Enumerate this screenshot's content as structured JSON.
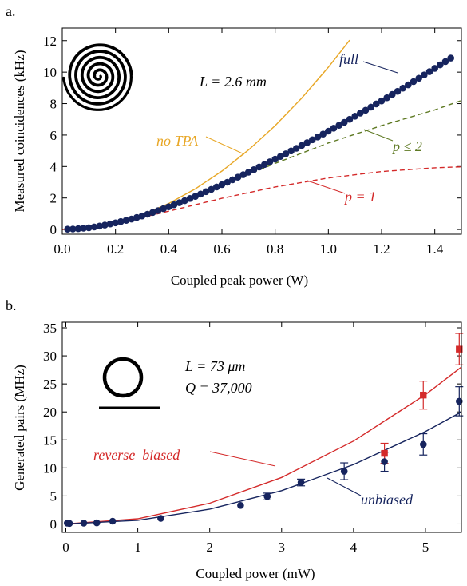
{
  "panels": [
    {
      "label": "a.",
      "xlabel": "Coupled peak power (W)",
      "ylabel": "Measured coincidences (kHz)",
      "inset_text": "L = 2.6 mm"
    },
    {
      "label": "b.",
      "xlabel": "Coupled power (mW)",
      "ylabel": "Generated pairs (MHz)",
      "inset_text_1": "L = 73 μm",
      "inset_text_2": "Q = 37,000"
    }
  ],
  "colors": {
    "navy": "#16245e",
    "red": "#d42a2a",
    "gold": "#e8a726",
    "olive": "#5f7a24",
    "axis": "#000000"
  },
  "chart_data": [
    {
      "type": "line",
      "xlim": [
        0,
        1.5
      ],
      "ylim": [
        -0.3,
        12.8
      ],
      "xticks": [
        "0.0",
        "0.2",
        "0.4",
        "0.6",
        "0.8",
        "1.0",
        "1.2",
        "1.4"
      ],
      "yticks": [
        "0",
        "2",
        "4",
        "6",
        "8",
        "10",
        "12"
      ],
      "grid": false,
      "series": [
        {
          "name": "full",
          "style": "markers+line",
          "x": [
            0.02,
            0.04,
            0.06,
            0.08,
            0.1,
            0.12,
            0.14,
            0.16,
            0.18,
            0.2,
            0.22,
            0.24,
            0.26,
            0.28,
            0.3,
            0.32,
            0.34,
            0.36,
            0.38,
            0.4,
            0.42,
            0.44,
            0.46,
            0.48,
            0.5,
            0.52,
            0.54,
            0.56,
            0.58,
            0.6,
            0.62,
            0.64,
            0.66,
            0.68,
            0.7,
            0.72,
            0.74,
            0.76,
            0.78,
            0.8,
            0.82,
            0.84,
            0.86,
            0.88,
            0.9,
            0.92,
            0.94,
            0.96,
            0.98,
            1.0,
            1.02,
            1.04,
            1.06,
            1.08,
            1.1,
            1.12,
            1.14,
            1.16,
            1.18,
            1.2,
            1.22,
            1.24,
            1.26,
            1.28,
            1.3,
            1.32,
            1.34,
            1.36,
            1.38,
            1.4,
            1.42,
            1.44,
            1.46
          ],
          "y": [
            0.02,
            0.03,
            0.05,
            0.08,
            0.11,
            0.16,
            0.22,
            0.28,
            0.35,
            0.42,
            0.5,
            0.58,
            0.66,
            0.76,
            0.86,
            0.97,
            1.08,
            1.2,
            1.32,
            1.44,
            1.57,
            1.7,
            1.83,
            1.97,
            2.1,
            2.25,
            2.4,
            2.55,
            2.7,
            2.85,
            3.0,
            3.16,
            3.32,
            3.48,
            3.64,
            3.8,
            3.97,
            4.13,
            4.3,
            4.47,
            4.64,
            4.81,
            4.99,
            5.16,
            5.34,
            5.52,
            5.7,
            5.88,
            6.06,
            6.25,
            6.44,
            6.62,
            6.81,
            7.0,
            7.2,
            7.39,
            7.58,
            7.78,
            7.98,
            8.17,
            8.37,
            8.58,
            8.78,
            8.98,
            9.19,
            9.4,
            9.61,
            9.82,
            10.03,
            10.24,
            10.46,
            10.67,
            10.89
          ]
        },
        {
          "name": "no TPA",
          "style": "solid",
          "x": [
            0.02,
            0.1,
            0.2,
            0.3,
            0.4,
            0.5,
            0.6,
            0.7,
            0.8,
            0.9,
            1.0,
            1.08
          ],
          "y": [
            0.0,
            0.1,
            0.4,
            0.93,
            1.65,
            2.58,
            3.71,
            5.05,
            6.6,
            8.35,
            10.31,
            12.03
          ]
        },
        {
          "name": "p ≤ 2",
          "style": "dashed",
          "x": [
            0.0,
            0.2,
            0.4,
            0.6,
            0.8,
            1.0,
            1.2,
            1.4,
            1.5
          ],
          "y": [
            0.0,
            0.4,
            1.5,
            2.8,
            4.2,
            5.5,
            6.6,
            7.6,
            8.2
          ]
        },
        {
          "name": "p = 1",
          "style": "dashed",
          "x": [
            0.0,
            0.2,
            0.4,
            0.6,
            0.8,
            1.0,
            1.2,
            1.4,
            1.5
          ],
          "y": [
            0.0,
            0.36,
            1.16,
            1.98,
            2.7,
            3.27,
            3.68,
            3.92,
            3.98
          ]
        }
      ]
    },
    {
      "type": "scatter",
      "xlim": [
        -0.05,
        5.5
      ],
      "ylim": [
        -1.5,
        36
      ],
      "xticks": [
        "0",
        "1",
        "2",
        "3",
        "4",
        "5"
      ],
      "yticks": [
        "0",
        "5",
        "10",
        "15",
        "20",
        "25",
        "30",
        "35"
      ],
      "grid": false,
      "series": [
        {
          "name": "unbiased",
          "marker": "circle",
          "x": [
            0.02,
            0.05,
            0.25,
            0.43,
            0.65,
            1.32,
            2.43,
            2.8,
            3.27,
            3.87,
            4.43,
            4.97,
            5.47
          ],
          "y": [
            0.15,
            0.1,
            0.15,
            0.2,
            0.5,
            1.0,
            3.3,
            4.9,
            7.4,
            9.4,
            11.1,
            14.2,
            21.9
          ],
          "err": [
            0,
            0,
            0,
            0,
            0,
            0,
            0,
            0.6,
            0.6,
            1.5,
            1.7,
            1.9,
            2.6
          ]
        },
        {
          "name": "reverse–biased",
          "marker": "square",
          "x": [
            4.43,
            4.97,
            5.47
          ],
          "y": [
            12.6,
            23.0,
            31.2
          ],
          "err": [
            1.8,
            2.5,
            2.8
          ]
        },
        {
          "name": "reverse–biased fit",
          "style": "solid",
          "x": [
            0,
            1,
            2,
            3,
            4,
            5,
            5.5
          ],
          "y": [
            0,
            0.93,
            3.7,
            8.3,
            14.8,
            23.1,
            28.0
          ]
        },
        {
          "name": "unbiased fit",
          "style": "solid",
          "x": [
            0,
            1,
            2,
            3,
            4,
            5,
            5.5
          ],
          "y": [
            0,
            0.66,
            2.64,
            5.94,
            10.6,
            16.5,
            20.0
          ]
        }
      ],
      "labels": [
        "reverse–biased",
        "unbiased"
      ]
    }
  ]
}
